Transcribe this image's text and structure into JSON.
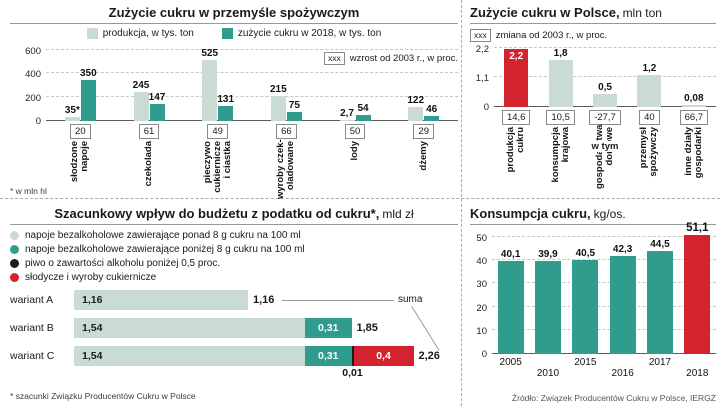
{
  "colors": {
    "light_green": "#c9dbd2",
    "teal": "#2f9c8d",
    "red": "#d2232e",
    "black": "#1d1d1b"
  },
  "chart_data": [
    {
      "id": "industry",
      "type": "bar",
      "title": "Zużycie cukru w przemyśle spożywczym",
      "legend": [
        {
          "label": "produkcja, w tys. ton",
          "color": "light_green"
        },
        {
          "label": "zużycie cukru w 2018, w tys. ton",
          "color": "teal"
        }
      ],
      "note_marker": "xxx",
      "note": "wzrost od 2003 r., w proc.",
      "footnote": "* w mln hl",
      "ylim": [
        0,
        600
      ],
      "yticks": [
        "0",
        "200",
        "400",
        "600"
      ],
      "ytick_values": [
        0,
        200,
        400,
        600
      ],
      "categories": [
        "słodzone napoje",
        "czekolada",
        "pieczywo cukiernicze i ciastka",
        "wyroby czekoladowane",
        "lody",
        "dżemy"
      ],
      "category_lines": [
        [
          "słodzone",
          "napoje"
        ],
        [
          "czekolada"
        ],
        [
          "pieczywo",
          "cukiernicze",
          "i ciastka"
        ],
        [
          "wyroby czek-",
          "oladowane"
        ],
        [
          "lody"
        ],
        [
          "dżemy"
        ]
      ],
      "series": [
        {
          "name": "produkcja, w tys. ton",
          "color": "light_green",
          "values": [
            35,
            245,
            525,
            215,
            2.7,
            122
          ],
          "labels": [
            "35*",
            "245",
            "525",
            "215",
            "2,7",
            "122"
          ]
        },
        {
          "name": "zużycie cukru w 2018, w tys. ton",
          "color": "teal",
          "values": [
            350,
            147,
            131,
            75,
            54,
            46
          ],
          "labels": [
            "350",
            "147",
            "131",
            "75",
            "54",
            "46"
          ]
        }
      ],
      "growth_since_2003_pct": [
        "20",
        "61",
        "49",
        "66",
        "50",
        "29"
      ]
    },
    {
      "id": "poland",
      "type": "bar",
      "title": "Zużycie cukru w Polsce,",
      "unit": "mln ton",
      "note_marker": "xxx",
      "note": "zmiana od 2003 r., w proc.",
      "ylim": [
        0,
        2.2
      ],
      "yticks": [
        "0",
        "1,1",
        "2,2"
      ],
      "ytick_values": [
        0,
        1.1,
        2.2
      ],
      "categories": [
        "produkcja cukru",
        "konsumpcja krajowa",
        "gospodarstwa domowe",
        "przemysł spożywczy",
        "inne działy gospodarki"
      ],
      "category_lines": [
        [
          "produkcja",
          "cukru"
        ],
        [
          "konsumpcja",
          "krajowa"
        ],
        [
          "gospodarstwa",
          "domowe"
        ],
        [
          "przemysł",
          "spożywczy"
        ],
        [
          "inne działy",
          "gospodarki"
        ]
      ],
      "values": [
        2.2,
        1.8,
        0.5,
        1.2,
        0.08
      ],
      "labels": [
        "2,2",
        "1,8",
        "0,5",
        "1,2",
        "0,08"
      ],
      "bar_colors": [
        "red",
        "light_green",
        "light_green",
        "light_green",
        "light_green"
      ],
      "annotation": "w tym",
      "annotation_over_category": "gospodarstwa domowe",
      "change_since_2003_pct": [
        "14,6",
        "10,5",
        "-27,7",
        "40",
        "66,7"
      ]
    },
    {
      "id": "sugar-tax",
      "type": "stacked_bar_horizontal",
      "title": "Szacunkowy wpływ do budżetu z podatku od cukru*,",
      "unit": "mld zł",
      "legend": [
        {
          "label": "napoje bezalkoholowe zawierające ponad 8 g cukru na 100 ml",
          "color": "light_green"
        },
        {
          "label": "napoje bezalkoholowe zawierające poniżej 8 g cukru na 100 ml",
          "color": "teal"
        },
        {
          "label": "piwo o zawartości alkoholu poniżej 0,5 proc.",
          "color": "black"
        },
        {
          "label": "słodycze i wyroby cukiernicze",
          "color": "red"
        }
      ],
      "sum_label": "suma",
      "rows": [
        {
          "label": "wariant A",
          "total": "1,16",
          "segments": [
            {
              "value": 1.16,
              "label": "1,16",
              "color": "light_green"
            }
          ]
        },
        {
          "label": "wariant B",
          "total": "1,85",
          "segments": [
            {
              "value": 1.54,
              "label": "1,54",
              "color": "light_green"
            },
            {
              "value": 0.31,
              "label": "0,31",
              "color": "teal"
            }
          ]
        },
        {
          "label": "wariant C",
          "total": "2,26",
          "segments": [
            {
              "value": 1.54,
              "label": "1,54",
              "color": "light_green"
            },
            {
              "value": 0.31,
              "label": "0,31",
              "color": "teal"
            },
            {
              "value": 0.01,
              "label": "0,01",
              "color": "black",
              "label_position": "below"
            },
            {
              "value": 0.4,
              "label": "0,4",
              "color": "red"
            }
          ]
        }
      ],
      "footnote": "* szacunki Związku Producentów Cukru w Polsce"
    },
    {
      "id": "consumption",
      "type": "bar",
      "title": "Konsumpcja cukru,",
      "unit": "kg/os.",
      "ylim": [
        0,
        50
      ],
      "yticks": [
        "0",
        "10",
        "20",
        "30",
        "40",
        "50"
      ],
      "ytick_values": [
        0,
        10,
        20,
        30,
        40,
        50
      ],
      "categories": [
        "2005",
        "2010",
        "2015",
        "2016",
        "2017",
        "2018"
      ],
      "values": [
        40.1,
        39.9,
        40.5,
        42.3,
        44.5,
        51.1
      ],
      "labels": [
        "40,1",
        "39,9",
        "40,5",
        "42,3",
        "44,5",
        "51,1"
      ],
      "bar_colors": [
        "teal",
        "teal",
        "teal",
        "teal",
        "teal",
        "red"
      ],
      "source": "Źródło: Związek Producentów Cukru w Polsce, IERGŻ"
    }
  ]
}
